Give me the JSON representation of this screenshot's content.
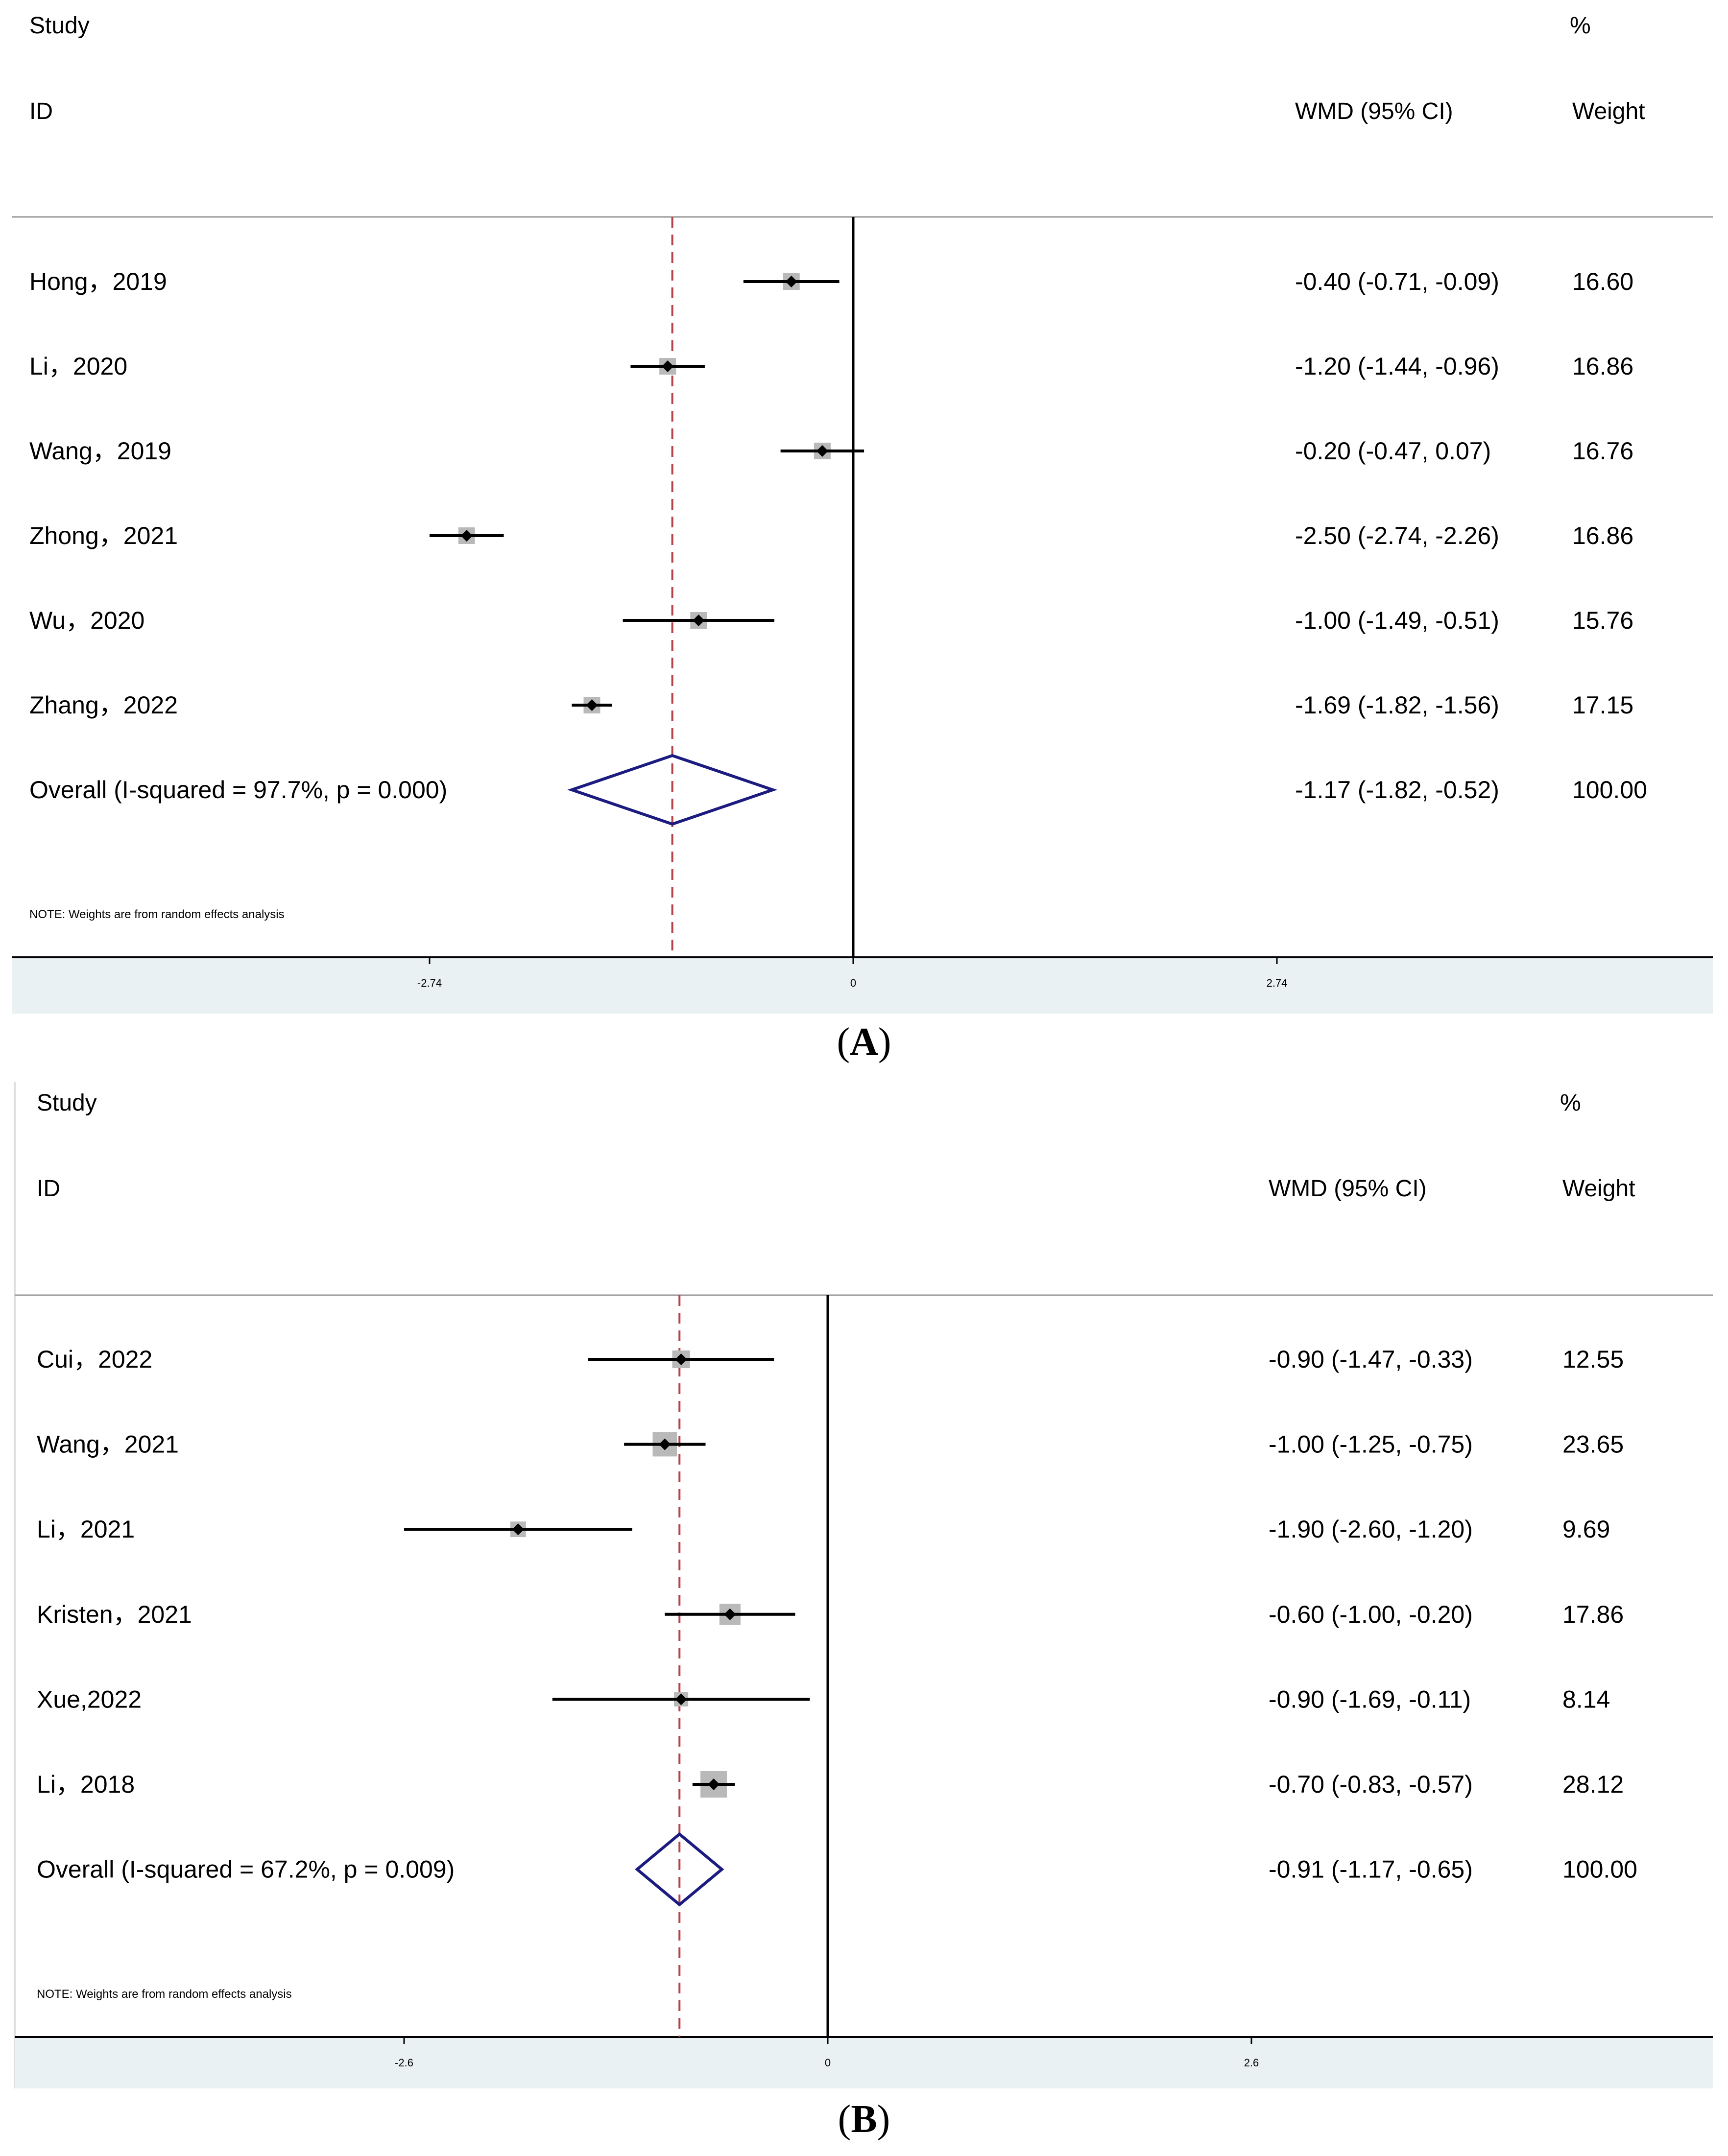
{
  "chart_data": [
    {
      "type": "forest",
      "panel_label": "A",
      "header": {
        "study": "Study",
        "id": "ID",
        "effect": "WMD (95% CI)",
        "pct": "%",
        "weight": "Weight"
      },
      "xticks": [
        -2.74,
        0,
        2.74
      ],
      "xtick_labels": [
        "-2.74",
        "0",
        "2.74"
      ],
      "xlim": [
        -5.35,
        5.55
      ],
      "null_line": 0,
      "pooled_line": -1.17,
      "studies": [
        {
          "name": "Hong，2019",
          "est": -0.4,
          "lo": -0.71,
          "hi": -0.09,
          "ci_text": "-0.40 (-0.71, -0.09)",
          "weight": "16.60"
        },
        {
          "name": "Li，2020",
          "est": -1.2,
          "lo": -1.44,
          "hi": -0.96,
          "ci_text": "-1.20 (-1.44, -0.96)",
          "weight": "16.86"
        },
        {
          "name": "Wang，2019",
          "est": -0.2,
          "lo": -0.47,
          "hi": 0.07,
          "ci_text": "-0.20 (-0.47, 0.07)",
          "weight": "16.76"
        },
        {
          "name": "Zhong，2021",
          "est": -2.5,
          "lo": -2.74,
          "hi": -2.26,
          "ci_text": "-2.50 (-2.74, -2.26)",
          "weight": "16.86"
        },
        {
          "name": "Wu，2020",
          "est": -1.0,
          "lo": -1.49,
          "hi": -0.51,
          "ci_text": "-1.00 (-1.49, -0.51)",
          "weight": "15.76"
        },
        {
          "name": "Zhang，2022",
          "est": -1.69,
          "lo": -1.82,
          "hi": -1.56,
          "ci_text": "-1.69 (-1.82, -1.56)",
          "weight": "17.15"
        }
      ],
      "overall": {
        "label": "Overall  (I-squared = 97.7%, p = 0.000)",
        "est": -1.17,
        "lo": -1.82,
        "hi": -0.52,
        "ci_text": "-1.17 (-1.82, -0.52)",
        "weight": "100.00"
      },
      "note": "NOTE: Weights are from random effects analysis"
    },
    {
      "type": "forest",
      "panel_label": "B",
      "header": {
        "study": "Study",
        "id": "ID",
        "effect": "WMD (95% CI)",
        "pct": "%",
        "weight": "Weight"
      },
      "xticks": [
        -2.6,
        0,
        2.6
      ],
      "xtick_labels": [
        "-2.6",
        "0",
        "2.6"
      ],
      "xlim": [
        -5.05,
        5.35
      ],
      "null_line": 0,
      "pooled_line": -0.91,
      "studies": [
        {
          "name": "Cui，2022",
          "est": -0.9,
          "lo": -1.47,
          "hi": -0.33,
          "ci_text": "-0.90 (-1.47, -0.33)",
          "weight": "12.55"
        },
        {
          "name": "Wang，2021",
          "est": -1.0,
          "lo": -1.25,
          "hi": -0.75,
          "ci_text": "-1.00 (-1.25, -0.75)",
          "weight": "23.65"
        },
        {
          "name": "Li，2021",
          "est": -1.9,
          "lo": -2.6,
          "hi": -1.2,
          "ci_text": "-1.90 (-2.60, -1.20)",
          "weight": "9.69"
        },
        {
          "name": "Kristen，2021",
          "est": -0.6,
          "lo": -1.0,
          "hi": -0.2,
          "ci_text": "-0.60 (-1.00, -0.20)",
          "weight": "17.86"
        },
        {
          "name": "Xue,2022",
          "est": -0.9,
          "lo": -1.69,
          "hi": -0.11,
          "ci_text": "-0.90 (-1.69, -0.11)",
          "weight": "8.14"
        },
        {
          "name": "Li，2018",
          "est": -0.7,
          "lo": -0.83,
          "hi": -0.57,
          "ci_text": "-0.70 (-0.83, -0.57)",
          "weight": "28.12"
        }
      ],
      "overall": {
        "label": "Overall  (I-squared = 67.2%, p = 0.009)",
        "est": -0.91,
        "lo": -1.17,
        "hi": -0.65,
        "ci_text": "-0.91 (-1.17, -0.65)",
        "weight": "100.00"
      },
      "note": "NOTE: Weights are from random effects analysis"
    }
  ],
  "colors": {
    "background": "#ffffff",
    "axis_band": "#e9f1f2",
    "pooled_line": "#b5424b",
    "diamond": "#1b1b80",
    "weight_box": "#b9b9b9",
    "ink": "#000000",
    "rule": "#999999"
  }
}
